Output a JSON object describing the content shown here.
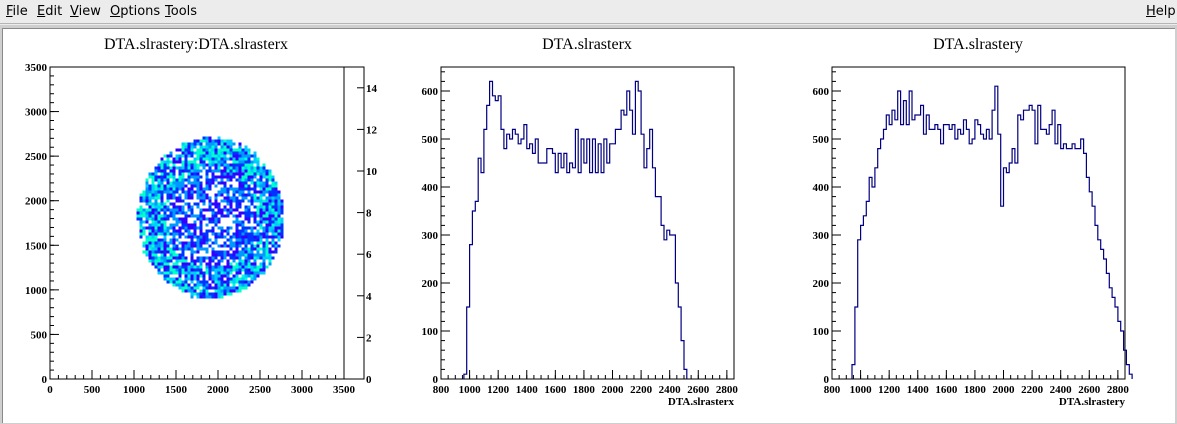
{
  "menu": {
    "items": [
      {
        "label": "File",
        "access": "F",
        "rest": "ile"
      },
      {
        "label": "Edit",
        "access": "E",
        "rest": "dit"
      },
      {
        "label": "View",
        "access": "V",
        "rest": "iew"
      },
      {
        "label": "Options",
        "access": "O",
        "rest": "ptions"
      },
      {
        "label": "Tools",
        "access": "T",
        "rest": "ools"
      }
    ],
    "help": {
      "label": "Help",
      "access": "H",
      "rest": "elp"
    }
  },
  "colors": {
    "histogram_line": "#000080",
    "frame": "#000000",
    "palette": [
      "#6600cc",
      "#3300ff",
      "#0033ff",
      "#0099ff",
      "#00ccff",
      "#00ffcc",
      "#00ff66",
      "#33ff00",
      "#99ff00",
      "#ccff00",
      "#ffff00",
      "#ffcc00",
      "#ff9900",
      "#ff6600",
      "#ff3300"
    ]
  },
  "chart_data": [
    {
      "type": "heatmap",
      "title": "DTA.slrastery:DTA.slrasterx",
      "xlim": [
        0,
        3500
      ],
      "ylim": [
        0,
        3500
      ],
      "xticks": [
        "0",
        "500",
        "1000",
        "1500",
        "2000",
        "2500",
        "3000",
        "3500"
      ],
      "yticks": [
        "0",
        "500",
        "1000",
        "1500",
        "2000",
        "2500",
        "3000",
        "3500"
      ],
      "zlim": [
        0,
        15
      ],
      "zticks": [
        "0",
        "2",
        "4",
        "6",
        "8",
        "10",
        "12",
        "14"
      ],
      "blob": {
        "center_x": 1900,
        "center_y": 1820,
        "radius_x": 870,
        "radius_y": 900,
        "x_min": 1030,
        "x_max": 2770,
        "y_min": 920,
        "y_max": 2720,
        "z_typical": [
          1,
          5
        ],
        "z_max": 6
      }
    },
    {
      "type": "line",
      "title": "DTA.slrasterx",
      "xlabel": "DTA.slrasterx",
      "xlim": [
        800,
        2850
      ],
      "ylim": [
        0,
        650
      ],
      "xticks": [
        "800",
        "1000",
        "1200",
        "1400",
        "1600",
        "1800",
        "2000",
        "2200",
        "2400",
        "2600",
        "2800"
      ],
      "yticks": [
        "0",
        "100",
        "200",
        "300",
        "400",
        "500",
        "600"
      ],
      "bin_start": 960,
      "bin_width": 20,
      "values": [
        10,
        150,
        280,
        350,
        370,
        460,
        430,
        520,
        570,
        620,
        590,
        580,
        590,
        520,
        480,
        510,
        500,
        520,
        510,
        490,
        500,
        530,
        480,
        490,
        470,
        500,
        450,
        450,
        450,
        480,
        480,
        470,
        430,
        470,
        440,
        470,
        430,
        450,
        440,
        520,
        430,
        500,
        450,
        500,
        430,
        500,
        430,
        490,
        430,
        500,
        450,
        490,
        490,
        520,
        520,
        560,
        550,
        600,
        560,
        510,
        620,
        600,
        510,
        440,
        480,
        520,
        440,
        380,
        380,
        320,
        290,
        310,
        300,
        300,
        200,
        150,
        80,
        20
      ]
    },
    {
      "type": "line",
      "title": "DTA.slrastery",
      "xlabel": "DTA.slrastery",
      "xlim": [
        800,
        2850
      ],
      "ylim": [
        0,
        650
      ],
      "xticks": [
        "800",
        "1000",
        "1200",
        "1400",
        "1600",
        "1800",
        "2000",
        "2200",
        "2400",
        "2600",
        "2800"
      ],
      "yticks": [
        "0",
        "100",
        "200",
        "300",
        "400",
        "500",
        "600"
      ],
      "bin_start": 940,
      "bin_width": 20,
      "values": [
        30,
        150,
        290,
        320,
        340,
        370,
        420,
        400,
        440,
        480,
        500,
        520,
        550,
        530,
        560,
        540,
        600,
        530,
        580,
        530,
        600,
        540,
        550,
        550,
        570,
        510,
        550,
        520,
        520,
        530,
        520,
        490,
        530,
        530,
        520,
        530,
        500,
        520,
        510,
        540,
        520,
        490,
        500,
        540,
        530,
        510,
        500,
        520,
        500,
        560,
        610,
        510,
        360,
        440,
        430,
        450,
        480,
        450,
        550,
        540,
        560,
        560,
        570,
        560,
        490,
        570,
        520,
        520,
        510,
        530,
        560,
        490,
        530,
        480,
        490,
        480,
        480,
        490,
        480,
        480,
        500,
        470,
        420,
        390,
        360,
        320,
        290,
        270,
        250,
        220,
        190,
        170,
        150,
        120,
        100,
        60,
        30,
        10
      ]
    }
  ]
}
